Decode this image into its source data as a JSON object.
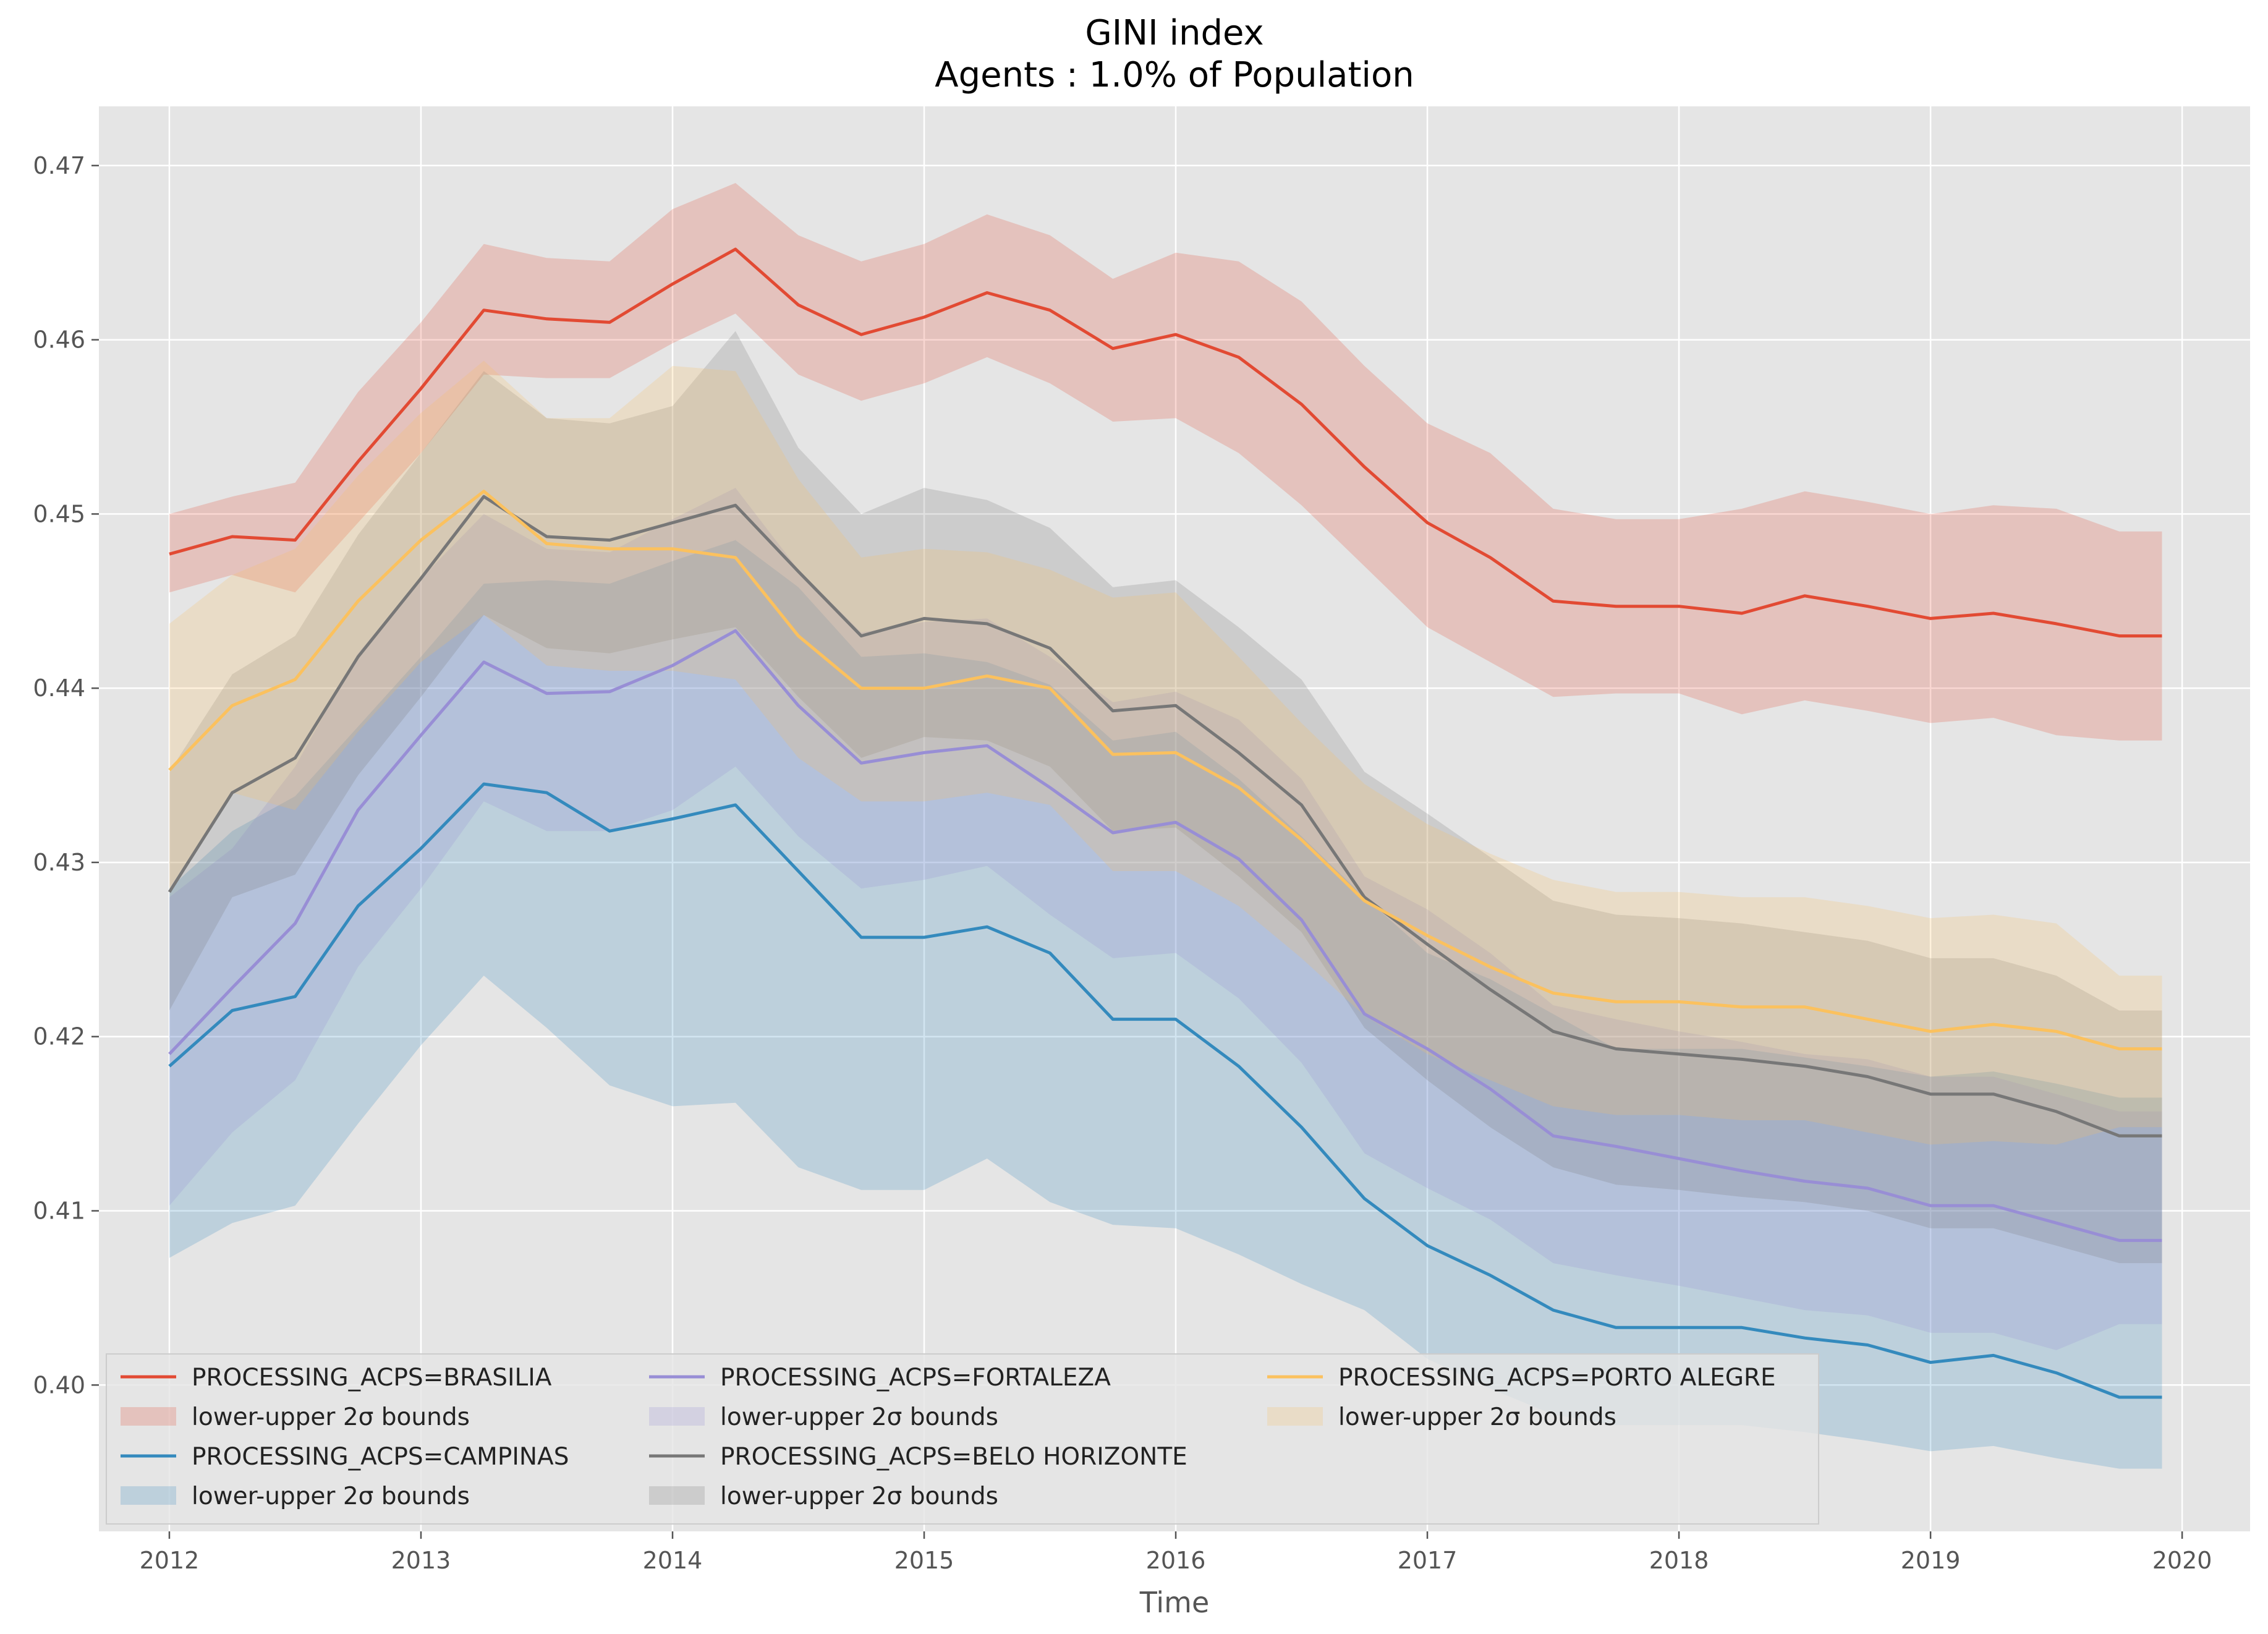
{
  "chart_data": {
    "type": "line",
    "title": "GINI index",
    "subtitle": "Agents : 1.0% of Population",
    "xlabel": "Time",
    "ylabel": "",
    "xlim": [
      2011.72,
      2020.27
    ],
    "ylim": [
      0.3916,
      0.4734
    ],
    "xticks": [
      2012,
      2013,
      2014,
      2015,
      2016,
      2017,
      2018,
      2019,
      2020
    ],
    "xtick_labels": [
      "2012",
      "2013",
      "2014",
      "2015",
      "2016",
      "2017",
      "2018",
      "2019",
      "2020"
    ],
    "yticks": [
      0.4,
      0.41,
      0.42,
      0.43,
      0.44,
      0.45,
      0.46,
      0.47
    ],
    "ytick_labels": [
      "0.40",
      "0.41",
      "0.42",
      "0.43",
      "0.44",
      "0.45",
      "0.46",
      "0.47"
    ],
    "grid": true,
    "legend_position": "lower-left",
    "band_label": "lower-upper 2σ bounds",
    "series": [
      {
        "name": "PROCESSING_ACPS=BRASILIA",
        "color": "#E24A33",
        "x": [
          2012.0,
          2012.25,
          2012.5,
          2012.75,
          2013.0,
          2013.25,
          2013.5,
          2013.75,
          2014.0,
          2014.25,
          2014.5,
          2014.75,
          2015.0,
          2015.25,
          2015.5,
          2015.75,
          2016.0,
          2016.25,
          2016.5,
          2016.75,
          2017.0,
          2017.25,
          2017.5,
          2017.75,
          2018.0,
          2018.25,
          2018.5,
          2018.75,
          2019.0,
          2019.25,
          2019.5,
          2019.75,
          2019.92
        ],
        "y": [
          0.4477,
          0.4487,
          0.4485,
          0.453,
          0.4572,
          0.4617,
          0.4612,
          0.461,
          0.4632,
          0.4652,
          0.462,
          0.4603,
          0.4613,
          0.4627,
          0.4617,
          0.4595,
          0.4603,
          0.459,
          0.4563,
          0.4527,
          0.4495,
          0.4475,
          0.445,
          0.4447,
          0.4447,
          0.4443,
          0.4453,
          0.4447,
          0.444,
          0.4443,
          0.4437,
          0.443,
          0.443
        ],
        "lower": [
          0.4455,
          0.4465,
          0.4455,
          0.4495,
          0.4535,
          0.458,
          0.4578,
          0.4578,
          0.4598,
          0.4615,
          0.458,
          0.4565,
          0.4575,
          0.459,
          0.4575,
          0.4553,
          0.4555,
          0.4535,
          0.4505,
          0.447,
          0.4435,
          0.4415,
          0.4395,
          0.4397,
          0.4397,
          0.4385,
          0.4393,
          0.4387,
          0.438,
          0.4383,
          0.4373,
          0.437,
          0.437
        ],
        "upper": [
          0.45,
          0.451,
          0.4518,
          0.457,
          0.461,
          0.4655,
          0.4647,
          0.4645,
          0.4675,
          0.469,
          0.466,
          0.4645,
          0.4655,
          0.4672,
          0.466,
          0.4635,
          0.465,
          0.4645,
          0.4622,
          0.4585,
          0.4552,
          0.4535,
          0.4503,
          0.4497,
          0.4497,
          0.4503,
          0.4513,
          0.4507,
          0.45,
          0.4505,
          0.4503,
          0.449,
          0.449
        ]
      },
      {
        "name": "PROCESSING_ACPS=CAMPINAS",
        "color": "#348ABD",
        "x": [
          2012.0,
          2012.25,
          2012.5,
          2012.75,
          2013.0,
          2013.25,
          2013.5,
          2013.75,
          2014.0,
          2014.25,
          2014.5,
          2014.75,
          2015.0,
          2015.25,
          2015.5,
          2015.75,
          2016.0,
          2016.25,
          2016.5,
          2016.75,
          2017.0,
          2017.25,
          2017.5,
          2017.75,
          2018.0,
          2018.25,
          2018.5,
          2018.75,
          2019.0,
          2019.25,
          2019.5,
          2019.75,
          2019.92
        ],
        "y": [
          0.4183,
          0.4215,
          0.4223,
          0.4275,
          0.4308,
          0.4345,
          0.434,
          0.4318,
          0.4325,
          0.4333,
          0.4295,
          0.4257,
          0.4257,
          0.4263,
          0.4248,
          0.421,
          0.421,
          0.4183,
          0.4148,
          0.4107,
          0.408,
          0.4063,
          0.4043,
          0.4033,
          0.4033,
          0.4033,
          0.4027,
          0.4023,
          0.4013,
          0.4017,
          0.4007,
          0.3993,
          0.3993
        ],
        "lower": [
          0.4073,
          0.4093,
          0.4103,
          0.415,
          0.4195,
          0.4235,
          0.4205,
          0.4172,
          0.416,
          0.4162,
          0.4125,
          0.4112,
          0.4112,
          0.413,
          0.4105,
          0.4092,
          0.409,
          0.4075,
          0.4058,
          0.4043,
          0.4015,
          0.3998,
          0.3983,
          0.3977,
          0.3977,
          0.3977,
          0.3973,
          0.3968,
          0.3962,
          0.3965,
          0.3958,
          0.3952,
          0.3952
        ],
        "upper": [
          0.4285,
          0.4318,
          0.4338,
          0.4378,
          0.4418,
          0.446,
          0.4462,
          0.446,
          0.4473,
          0.4485,
          0.4458,
          0.4418,
          0.442,
          0.4415,
          0.4402,
          0.437,
          0.4375,
          0.4348,
          0.4315,
          0.428,
          0.4248,
          0.4233,
          0.4213,
          0.4193,
          0.4193,
          0.4193,
          0.4188,
          0.4183,
          0.4177,
          0.418,
          0.4173,
          0.4165,
          0.4165
        ]
      },
      {
        "name": "PROCESSING_ACPS=FORTALEZA",
        "color": "#988ED5",
        "x": [
          2012.0,
          2012.25,
          2012.5,
          2012.75,
          2013.0,
          2013.25,
          2013.5,
          2013.75,
          2014.0,
          2014.25,
          2014.5,
          2014.75,
          2015.0,
          2015.25,
          2015.5,
          2015.75,
          2016.0,
          2016.25,
          2016.5,
          2016.75,
          2017.0,
          2017.25,
          2017.5,
          2017.75,
          2018.0,
          2018.25,
          2018.5,
          2018.75,
          2019.0,
          2019.25,
          2019.5,
          2019.75,
          2019.92
        ],
        "y": [
          0.419,
          0.4228,
          0.4265,
          0.433,
          0.4373,
          0.4415,
          0.4397,
          0.4398,
          0.4413,
          0.4433,
          0.439,
          0.4357,
          0.4363,
          0.4367,
          0.4343,
          0.4317,
          0.4323,
          0.4302,
          0.4267,
          0.4213,
          0.4193,
          0.417,
          0.4143,
          0.4137,
          0.413,
          0.4123,
          0.4117,
          0.4113,
          0.4103,
          0.4103,
          0.4093,
          0.4083,
          0.4083
        ],
        "lower": [
          0.4103,
          0.4145,
          0.4175,
          0.424,
          0.4285,
          0.4335,
          0.4318,
          0.4318,
          0.433,
          0.4355,
          0.4315,
          0.4285,
          0.429,
          0.4298,
          0.427,
          0.4245,
          0.4248,
          0.4222,
          0.4185,
          0.4133,
          0.4113,
          0.4095,
          0.407,
          0.4063,
          0.4057,
          0.405,
          0.4043,
          0.404,
          0.403,
          0.403,
          0.402,
          0.4035,
          0.4035
        ],
        "upper": [
          0.428,
          0.4308,
          0.4355,
          0.442,
          0.4463,
          0.45,
          0.448,
          0.4478,
          0.4497,
          0.4515,
          0.4468,
          0.4432,
          0.4438,
          0.444,
          0.4418,
          0.4392,
          0.4398,
          0.4382,
          0.4348,
          0.4292,
          0.4273,
          0.4248,
          0.4218,
          0.421,
          0.4203,
          0.4197,
          0.419,
          0.4187,
          0.4177,
          0.4177,
          0.4167,
          0.4157,
          0.4157
        ]
      },
      {
        "name": "PROCESSING_ACPS=BELO HORIZONTE",
        "color": "#777777",
        "x": [
          2012.0,
          2012.25,
          2012.5,
          2012.75,
          2013.0,
          2013.25,
          2013.5,
          2013.75,
          2014.0,
          2014.25,
          2014.5,
          2014.75,
          2015.0,
          2015.25,
          2015.5,
          2015.75,
          2016.0,
          2016.25,
          2016.5,
          2016.75,
          2017.0,
          2017.25,
          2017.5,
          2017.75,
          2018.0,
          2018.25,
          2018.5,
          2018.75,
          2019.0,
          2019.25,
          2019.5,
          2019.75,
          2019.92
        ],
        "y": [
          0.4283,
          0.434,
          0.436,
          0.4418,
          0.4463,
          0.451,
          0.4487,
          0.4485,
          0.4495,
          0.4505,
          0.4467,
          0.443,
          0.444,
          0.4437,
          0.4423,
          0.4387,
          0.439,
          0.4363,
          0.4333,
          0.428,
          0.4253,
          0.4227,
          0.4203,
          0.4193,
          0.419,
          0.4187,
          0.4183,
          0.4177,
          0.4167,
          0.4167,
          0.4157,
          0.4143,
          0.4143
        ],
        "lower": [
          0.4215,
          0.428,
          0.4293,
          0.435,
          0.4395,
          0.4442,
          0.4423,
          0.442,
          0.4428,
          0.4435,
          0.4395,
          0.436,
          0.4372,
          0.437,
          0.4355,
          0.4318,
          0.432,
          0.4292,
          0.426,
          0.4205,
          0.4175,
          0.4148,
          0.4125,
          0.4115,
          0.4112,
          0.4108,
          0.4105,
          0.41,
          0.409,
          0.409,
          0.408,
          0.407,
          0.407
        ],
        "upper": [
          0.4352,
          0.4408,
          0.443,
          0.4488,
          0.4535,
          0.4582,
          0.4555,
          0.4552,
          0.4562,
          0.4605,
          0.4538,
          0.45,
          0.4515,
          0.4508,
          0.4492,
          0.4458,
          0.4462,
          0.4435,
          0.4405,
          0.4352,
          0.4328,
          0.4303,
          0.4278,
          0.427,
          0.4268,
          0.4265,
          0.426,
          0.4255,
          0.4245,
          0.4245,
          0.4235,
          0.4215,
          0.4215
        ]
      },
      {
        "name": "PROCESSING_ACPS=PORTO ALEGRE",
        "color": "#FBC15E",
        "x": [
          2012.0,
          2012.25,
          2012.5,
          2012.75,
          2013.0,
          2013.25,
          2013.5,
          2013.75,
          2014.0,
          2014.25,
          2014.5,
          2014.75,
          2015.0,
          2015.25,
          2015.5,
          2015.75,
          2016.0,
          2016.25,
          2016.5,
          2016.75,
          2017.0,
          2017.25,
          2017.5,
          2017.75,
          2018.0,
          2018.25,
          2018.5,
          2018.75,
          2019.0,
          2019.25,
          2019.5,
          2019.75,
          2019.92
        ],
        "y": [
          0.4353,
          0.439,
          0.4405,
          0.445,
          0.4485,
          0.4513,
          0.4483,
          0.448,
          0.448,
          0.4475,
          0.443,
          0.44,
          0.44,
          0.4407,
          0.44,
          0.4362,
          0.4363,
          0.4343,
          0.4313,
          0.4278,
          0.4258,
          0.424,
          0.4225,
          0.422,
          0.422,
          0.4217,
          0.4217,
          0.421,
          0.4203,
          0.4207,
          0.4203,
          0.4193,
          0.4193
        ],
        "lower": [
          0.4285,
          0.434,
          0.433,
          0.4375,
          0.4415,
          0.4442,
          0.4413,
          0.441,
          0.441,
          0.4405,
          0.436,
          0.4335,
          0.4335,
          0.434,
          0.4333,
          0.4295,
          0.4295,
          0.4275,
          0.4245,
          0.4212,
          0.419,
          0.4175,
          0.416,
          0.4155,
          0.4155,
          0.4152,
          0.4152,
          0.4145,
          0.4138,
          0.414,
          0.4138,
          0.4148,
          0.4148
        ],
        "upper": [
          0.4437,
          0.4465,
          0.448,
          0.4522,
          0.4558,
          0.4588,
          0.4555,
          0.4555,
          0.4585,
          0.4582,
          0.452,
          0.4475,
          0.448,
          0.4478,
          0.4468,
          0.4452,
          0.4455,
          0.4418,
          0.438,
          0.4345,
          0.4322,
          0.4305,
          0.429,
          0.4283,
          0.4283,
          0.428,
          0.428,
          0.4275,
          0.4268,
          0.427,
          0.4265,
          0.4235,
          0.4235
        ]
      }
    ]
  }
}
